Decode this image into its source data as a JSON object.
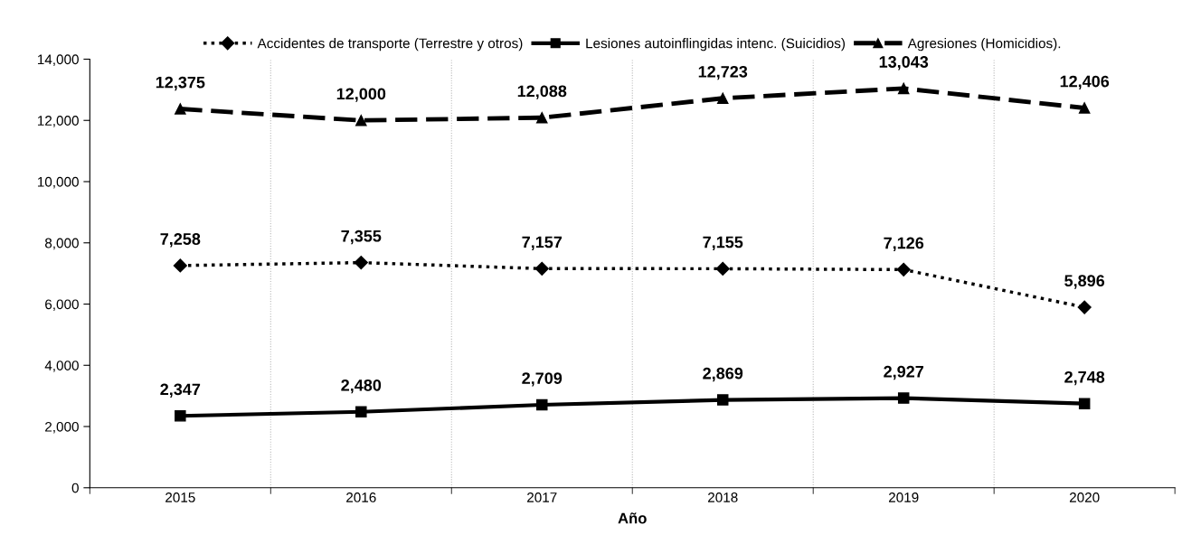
{
  "chart_data": {
    "type": "line",
    "xlabel": "Año",
    "categories": [
      "2015",
      "2016",
      "2017",
      "2018",
      "2019",
      "2020"
    ],
    "series": [
      {
        "name": "Accidentes de transporte (Terrestre y otros)",
        "color": "#000000",
        "marker": "diamond",
        "line_style": "dotted",
        "values": [
          7258,
          7355,
          7157,
          7155,
          7126,
          5896
        ],
        "value_labels": [
          "7,258",
          "7,355",
          "7,157",
          "7,155",
          "7,126",
          "5,896"
        ]
      },
      {
        "name": "Lesiones autoinflingidas intenc. (Suicidios)",
        "color": "#000000",
        "marker": "square",
        "line_style": "solid",
        "values": [
          2347,
          2480,
          2709,
          2869,
          2927,
          2748
        ],
        "value_labels": [
          "2,347",
          "2,480",
          "2,709",
          "2,869",
          "2,927",
          "2,748"
        ]
      },
      {
        "name": "Agresiones (Homicidios).",
        "color": "#000000",
        "marker": "triangle",
        "line_style": "dashed",
        "values": [
          12375,
          12000,
          12088,
          12723,
          13043,
          12406
        ],
        "value_labels": [
          "12,375",
          "12,000",
          "12,088",
          "12,723",
          "13,043",
          "12,406"
        ]
      }
    ],
    "ylim": [
      0,
      14000
    ],
    "yticks": [
      {
        "value": 0,
        "label": "0"
      },
      {
        "value": 2000,
        "label": "2,000"
      },
      {
        "value": 4000,
        "label": "4,000"
      },
      {
        "value": 6000,
        "label": "6,000"
      },
      {
        "value": 8000,
        "label": "8,000"
      },
      {
        "value": 10000,
        "label": "10,000"
      },
      {
        "value": 12000,
        "label": "12,000"
      },
      {
        "value": 14000,
        "label": "14,000"
      }
    ],
    "grid": "x",
    "legend": "top"
  }
}
